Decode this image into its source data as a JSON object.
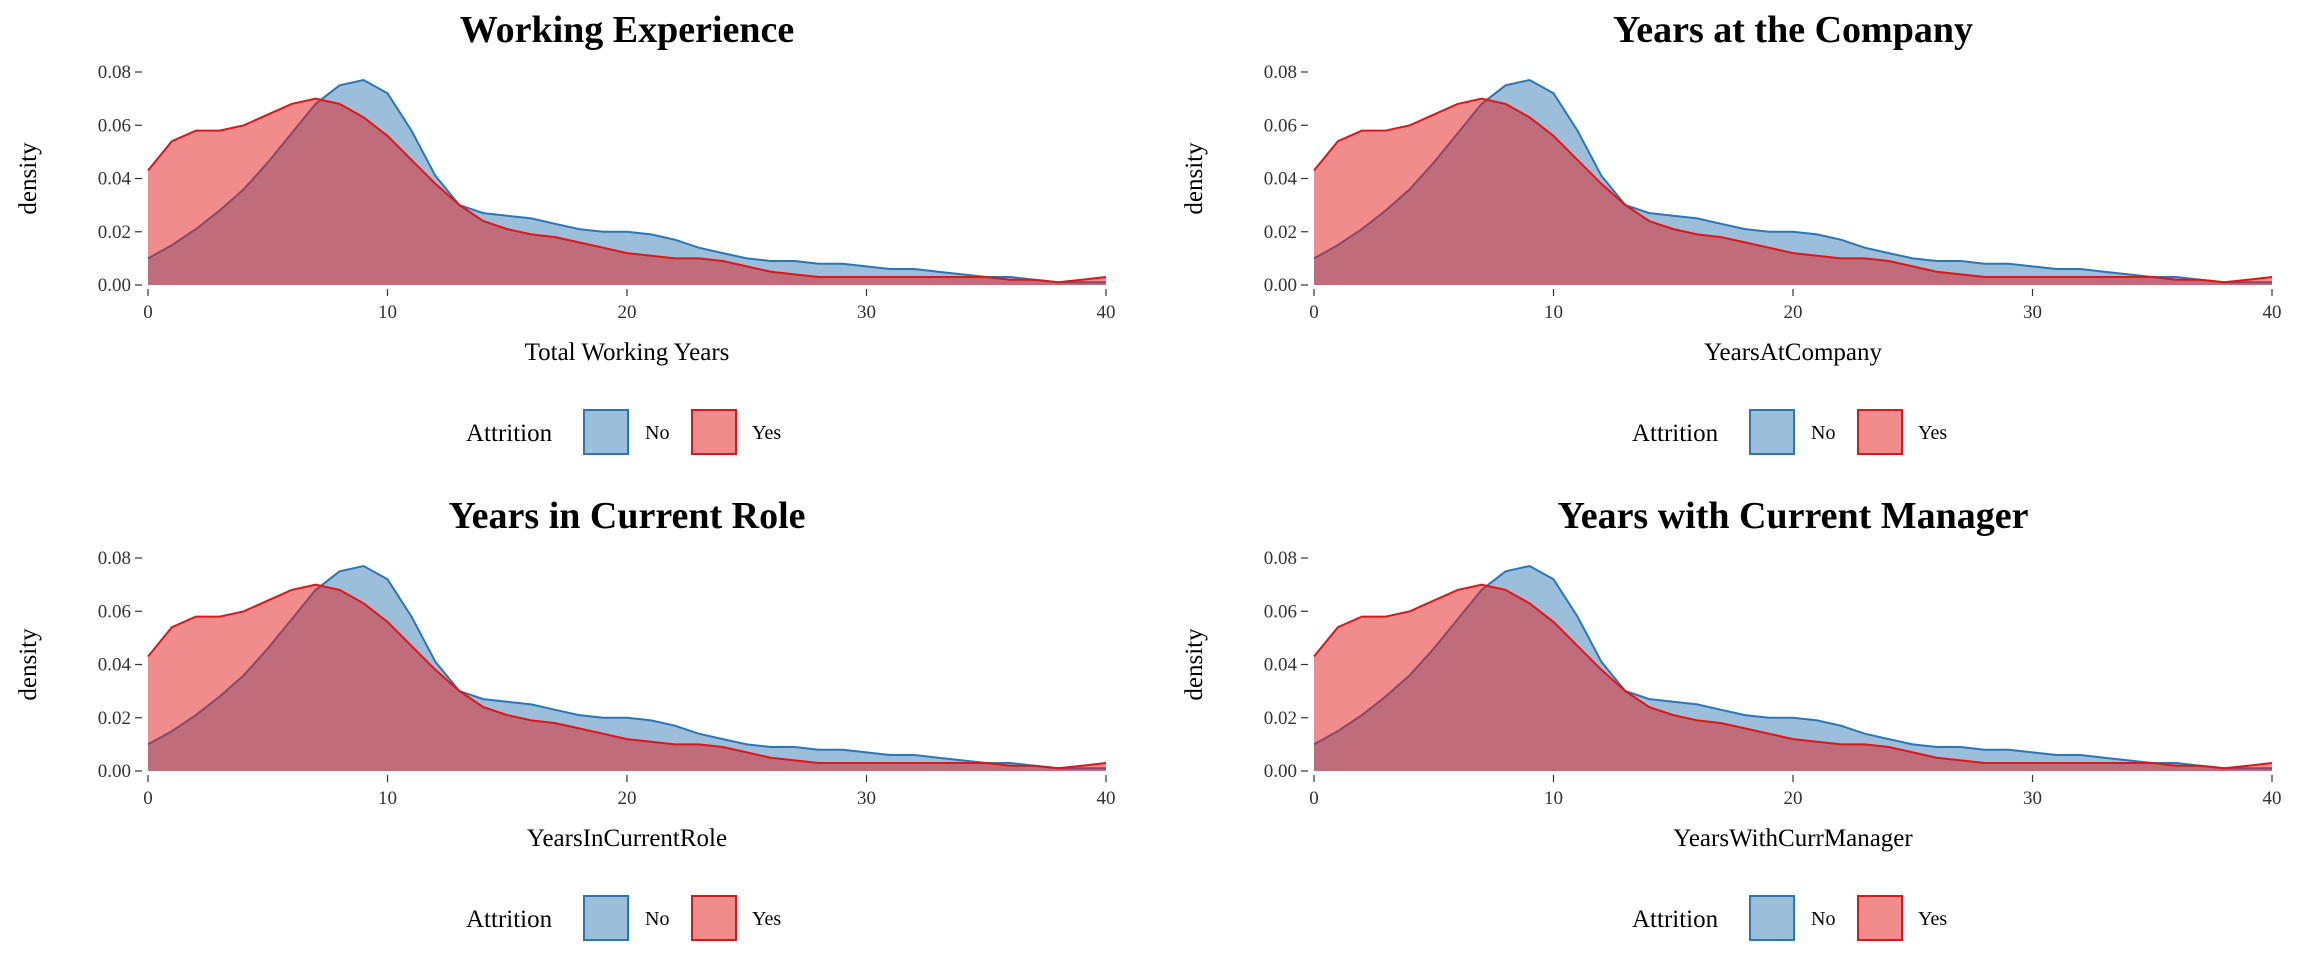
{
  "colors": {
    "no_fill": "#377EB8",
    "no_stroke": "#2E75B6",
    "yes_fill": "#E41A1C",
    "yes_stroke": "#D7191C",
    "fill_opacity": 0.5
  },
  "legend": {
    "title": "Attrition",
    "entries": [
      "No",
      "Yes"
    ]
  },
  "chart_data": [
    {
      "type": "area",
      "title": "Working Experience",
      "xlabel": "Total Working Years",
      "ylabel": "density",
      "xlim": [
        0,
        40
      ],
      "ylim": [
        0,
        0.08
      ],
      "x_ticks": [
        "0",
        "10",
        "20",
        "30",
        "40"
      ],
      "y_ticks": [
        "0.00",
        "0.02",
        "0.04",
        "0.06",
        "0.08"
      ],
      "grid": false,
      "legend_position": "bottom",
      "x": [
        0,
        1,
        2,
        3,
        4,
        5,
        6,
        7,
        8,
        9,
        10,
        11,
        12,
        13,
        14,
        15,
        16,
        17,
        18,
        19,
        20,
        21,
        22,
        23,
        24,
        25,
        26,
        27,
        28,
        29,
        30,
        31,
        32,
        33,
        34,
        35,
        36,
        37,
        38,
        39,
        40
      ],
      "series": [
        {
          "name": "No",
          "values": [
            0.01,
            0.015,
            0.021,
            0.028,
            0.036,
            0.046,
            0.057,
            0.068,
            0.075,
            0.077,
            0.072,
            0.058,
            0.041,
            0.03,
            0.027,
            0.026,
            0.025,
            0.023,
            0.021,
            0.02,
            0.02,
            0.019,
            0.017,
            0.014,
            0.012,
            0.01,
            0.009,
            0.009,
            0.008,
            0.008,
            0.007,
            0.006,
            0.006,
            0.005,
            0.004,
            0.003,
            0.003,
            0.002,
            0.001,
            0.001,
            0.001
          ]
        },
        {
          "name": "Yes",
          "values": [
            0.043,
            0.054,
            0.058,
            0.058,
            0.06,
            0.064,
            0.068,
            0.07,
            0.068,
            0.063,
            0.056,
            0.047,
            0.038,
            0.03,
            0.024,
            0.021,
            0.019,
            0.018,
            0.016,
            0.014,
            0.012,
            0.011,
            0.01,
            0.01,
            0.009,
            0.007,
            0.005,
            0.004,
            0.003,
            0.003,
            0.003,
            0.003,
            0.003,
            0.003,
            0.003,
            0.003,
            0.002,
            0.002,
            0.001,
            0.002,
            0.003
          ]
        }
      ]
    },
    {
      "type": "area",
      "title": "Years at the Company",
      "xlabel": "YearsAtCompany",
      "ylabel": "density",
      "xlim": [
        0,
        40
      ],
      "ylim": [
        0,
        0.08
      ],
      "x_ticks": [
        "0",
        "10",
        "20",
        "30",
        "40"
      ],
      "y_ticks": [
        "0.00",
        "0.02",
        "0.04",
        "0.06",
        "0.08"
      ],
      "grid": false,
      "legend_position": "bottom",
      "x": [
        0,
        1,
        2,
        3,
        4,
        5,
        6,
        7,
        8,
        9,
        10,
        11,
        12,
        13,
        14,
        15,
        16,
        17,
        18,
        19,
        20,
        21,
        22,
        23,
        24,
        25,
        26,
        27,
        28,
        29,
        30,
        31,
        32,
        33,
        34,
        35,
        36,
        37,
        38,
        39,
        40
      ],
      "series": [
        {
          "name": "No",
          "values": [
            0.01,
            0.015,
            0.021,
            0.028,
            0.036,
            0.046,
            0.057,
            0.068,
            0.075,
            0.077,
            0.072,
            0.058,
            0.041,
            0.03,
            0.027,
            0.026,
            0.025,
            0.023,
            0.021,
            0.02,
            0.02,
            0.019,
            0.017,
            0.014,
            0.012,
            0.01,
            0.009,
            0.009,
            0.008,
            0.008,
            0.007,
            0.006,
            0.006,
            0.005,
            0.004,
            0.003,
            0.003,
            0.002,
            0.001,
            0.001,
            0.001
          ]
        },
        {
          "name": "Yes",
          "values": [
            0.043,
            0.054,
            0.058,
            0.058,
            0.06,
            0.064,
            0.068,
            0.07,
            0.068,
            0.063,
            0.056,
            0.047,
            0.038,
            0.03,
            0.024,
            0.021,
            0.019,
            0.018,
            0.016,
            0.014,
            0.012,
            0.011,
            0.01,
            0.01,
            0.009,
            0.007,
            0.005,
            0.004,
            0.003,
            0.003,
            0.003,
            0.003,
            0.003,
            0.003,
            0.003,
            0.003,
            0.002,
            0.002,
            0.001,
            0.002,
            0.003
          ]
        }
      ]
    },
    {
      "type": "area",
      "title": "Years in Current Role",
      "xlabel": "YearsInCurrentRole",
      "ylabel": "density",
      "xlim": [
        0,
        40
      ],
      "ylim": [
        0,
        0.08
      ],
      "x_ticks": [
        "0",
        "10",
        "20",
        "30",
        "40"
      ],
      "y_ticks": [
        "0.00",
        "0.02",
        "0.04",
        "0.06",
        "0.08"
      ],
      "grid": false,
      "legend_position": "bottom",
      "x": [
        0,
        1,
        2,
        3,
        4,
        5,
        6,
        7,
        8,
        9,
        10,
        11,
        12,
        13,
        14,
        15,
        16,
        17,
        18,
        19,
        20,
        21,
        22,
        23,
        24,
        25,
        26,
        27,
        28,
        29,
        30,
        31,
        32,
        33,
        34,
        35,
        36,
        37,
        38,
        39,
        40
      ],
      "series": [
        {
          "name": "No",
          "values": [
            0.01,
            0.015,
            0.021,
            0.028,
            0.036,
            0.046,
            0.057,
            0.068,
            0.075,
            0.077,
            0.072,
            0.058,
            0.041,
            0.03,
            0.027,
            0.026,
            0.025,
            0.023,
            0.021,
            0.02,
            0.02,
            0.019,
            0.017,
            0.014,
            0.012,
            0.01,
            0.009,
            0.009,
            0.008,
            0.008,
            0.007,
            0.006,
            0.006,
            0.005,
            0.004,
            0.003,
            0.003,
            0.002,
            0.001,
            0.001,
            0.001
          ]
        },
        {
          "name": "Yes",
          "values": [
            0.043,
            0.054,
            0.058,
            0.058,
            0.06,
            0.064,
            0.068,
            0.07,
            0.068,
            0.063,
            0.056,
            0.047,
            0.038,
            0.03,
            0.024,
            0.021,
            0.019,
            0.018,
            0.016,
            0.014,
            0.012,
            0.011,
            0.01,
            0.01,
            0.009,
            0.007,
            0.005,
            0.004,
            0.003,
            0.003,
            0.003,
            0.003,
            0.003,
            0.003,
            0.003,
            0.003,
            0.002,
            0.002,
            0.001,
            0.002,
            0.003
          ]
        }
      ]
    },
    {
      "type": "area",
      "title": "Years with Current Manager",
      "xlabel": "YearsWithCurrManager",
      "ylabel": "density",
      "xlim": [
        0,
        40
      ],
      "ylim": [
        0,
        0.08
      ],
      "x_ticks": [
        "0",
        "10",
        "20",
        "30",
        "40"
      ],
      "y_ticks": [
        "0.00",
        "0.02",
        "0.04",
        "0.06",
        "0.08"
      ],
      "grid": false,
      "legend_position": "bottom",
      "x": [
        0,
        1,
        2,
        3,
        4,
        5,
        6,
        7,
        8,
        9,
        10,
        11,
        12,
        13,
        14,
        15,
        16,
        17,
        18,
        19,
        20,
        21,
        22,
        23,
        24,
        25,
        26,
        27,
        28,
        29,
        30,
        31,
        32,
        33,
        34,
        35,
        36,
        37,
        38,
        39,
        40
      ],
      "series": [
        {
          "name": "No",
          "values": [
            0.01,
            0.015,
            0.021,
            0.028,
            0.036,
            0.046,
            0.057,
            0.068,
            0.075,
            0.077,
            0.072,
            0.058,
            0.041,
            0.03,
            0.027,
            0.026,
            0.025,
            0.023,
            0.021,
            0.02,
            0.02,
            0.019,
            0.017,
            0.014,
            0.012,
            0.01,
            0.009,
            0.009,
            0.008,
            0.008,
            0.007,
            0.006,
            0.006,
            0.005,
            0.004,
            0.003,
            0.003,
            0.002,
            0.001,
            0.001,
            0.001
          ]
        },
        {
          "name": "Yes",
          "values": [
            0.043,
            0.054,
            0.058,
            0.058,
            0.06,
            0.064,
            0.068,
            0.07,
            0.068,
            0.063,
            0.056,
            0.047,
            0.038,
            0.03,
            0.024,
            0.021,
            0.019,
            0.018,
            0.016,
            0.014,
            0.012,
            0.011,
            0.01,
            0.01,
            0.009,
            0.007,
            0.005,
            0.004,
            0.003,
            0.003,
            0.003,
            0.003,
            0.003,
            0.003,
            0.003,
            0.003,
            0.002,
            0.002,
            0.001,
            0.002,
            0.003
          ]
        }
      ]
    }
  ]
}
